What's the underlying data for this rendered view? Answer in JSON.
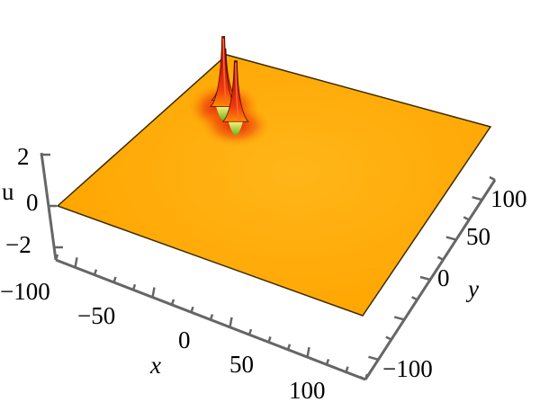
{
  "chart_data": {
    "type": "surface3d",
    "title": "",
    "xlabel": "x",
    "ylabel": "y",
    "zlabel": "u",
    "xlim": [
      -110,
      110
    ],
    "ylim": [
      -110,
      110
    ],
    "zlim": [
      -3,
      3
    ],
    "x_ticks": [
      "−100",
      "−50",
      "0",
      "50",
      "100"
    ],
    "y_ticks": [
      "−100",
      "0",
      "50",
      "100"
    ],
    "z_ticks": [
      "−2",
      "0",
      "2"
    ],
    "baseline_u": 0,
    "peaks": [
      {
        "x": -82,
        "y": 55,
        "u": 3.0
      },
      {
        "x": -67,
        "y": 44,
        "u": 2.6
      },
      {
        "x": -85,
        "y": 62,
        "u": 2.2
      }
    ],
    "colors": {
      "surface": "#ffaa00",
      "peak_mid": "#e8210d",
      "peak_top": "#7a0c06",
      "trough": "#9ad22a",
      "axis": "#666666"
    }
  }
}
